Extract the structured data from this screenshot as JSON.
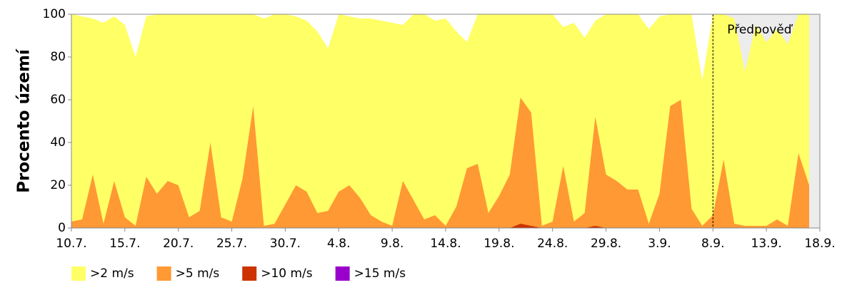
{
  "chart_data": {
    "type": "area",
    "y_label": "Procento území",
    "categories": [
      "10.7.",
      null,
      null,
      null,
      null,
      "15.7.",
      null,
      null,
      null,
      null,
      "20.7.",
      null,
      null,
      null,
      null,
      "25.7.",
      null,
      null,
      null,
      null,
      "30.7.",
      null,
      null,
      null,
      null,
      "4.8.",
      null,
      null,
      null,
      null,
      "9.8.",
      null,
      null,
      null,
      null,
      "14.8.",
      null,
      null,
      null,
      null,
      "19.8.",
      null,
      null,
      null,
      null,
      "24.8.",
      null,
      null,
      null,
      null,
      "29.8.",
      null,
      null,
      null,
      null,
      "3.9.",
      null,
      null,
      null,
      null,
      "8.9.",
      null,
      null,
      null,
      null,
      "13.9.",
      null,
      null,
      null,
      null,
      "18.9."
    ],
    "series": [
      {
        "name": ">2 m/s",
        "color": "#ffff66",
        "values": [
          100,
          99,
          98,
          96,
          99,
          95,
          80,
          99,
          100,
          100,
          100,
          100,
          100,
          100,
          100,
          100,
          100,
          100,
          98,
          100,
          100,
          99,
          97,
          92,
          84,
          100,
          99,
          98,
          98,
          97,
          96,
          95,
          100,
          100,
          97,
          98,
          92,
          87,
          100,
          100,
          100,
          100,
          100,
          100,
          100,
          100,
          94,
          96,
          89,
          97,
          100,
          100,
          100,
          100,
          93,
          99,
          100,
          100,
          100,
          69,
          100,
          100,
          98,
          73,
          95,
          87,
          93,
          86,
          100,
          100,
          null
        ]
      },
      {
        "name": ">5 m/s",
        "color": "#ff9933",
        "values": [
          3,
          4,
          25,
          2,
          22,
          5,
          1,
          24,
          16,
          22,
          20,
          5,
          8,
          40,
          5,
          3,
          23,
          57,
          1,
          2,
          11,
          20,
          17,
          7,
          8,
          17,
          20,
          14,
          6,
          3,
          1,
          22,
          13,
          4,
          6,
          1,
          10,
          28,
          30,
          7,
          15,
          25,
          61,
          54,
          1,
          3,
          29,
          3,
          7,
          52,
          25,
          22,
          18,
          18,
          2,
          16,
          57,
          60,
          9,
          1,
          6,
          32,
          2,
          1,
          1,
          1,
          4,
          1,
          35,
          20,
          null
        ]
      },
      {
        "name": ">10 m/s",
        "color": "#cc3300",
        "values": [
          0,
          0,
          0,
          0,
          0,
          0,
          0,
          0,
          0,
          0,
          0,
          0,
          0,
          0,
          0,
          0,
          0,
          0,
          0,
          0,
          0,
          0,
          0,
          0,
          0,
          0,
          0,
          0,
          0,
          0,
          0,
          0,
          0,
          0,
          0,
          0,
          0,
          0,
          0,
          0,
          0,
          0,
          2,
          1,
          0,
          0,
          0,
          0,
          0,
          1,
          0,
          0,
          0,
          0,
          0,
          0,
          0,
          0,
          0,
          0,
          0,
          0,
          0,
          0,
          0,
          0,
          0,
          0,
          0,
          0,
          null
        ]
      },
      {
        "name": ">15 m/s",
        "color": "#9900cc",
        "values": [
          0,
          0,
          0,
          0,
          0,
          0,
          0,
          0,
          0,
          0,
          0,
          0,
          0,
          0,
          0,
          0,
          0,
          0,
          0,
          0,
          0,
          0,
          0,
          0,
          0,
          0,
          0,
          0,
          0,
          0,
          0,
          0,
          0,
          0,
          0,
          0,
          0,
          0,
          0,
          0,
          0,
          0,
          0,
          0,
          0,
          0,
          0,
          0,
          0,
          0,
          0,
          0,
          0,
          0,
          0,
          0,
          0,
          0,
          0,
          0,
          0,
          0,
          0,
          0,
          0,
          0,
          0,
          0,
          0,
          0,
          null
        ]
      }
    ],
    "ylim": [
      0,
      100
    ],
    "yticks": [
      0,
      20,
      40,
      60,
      80,
      100
    ],
    "grid": false,
    "legend": "bottom",
    "forecast": {
      "label": "Předpověď",
      "x": 60,
      "color": "#ececec"
    }
  }
}
